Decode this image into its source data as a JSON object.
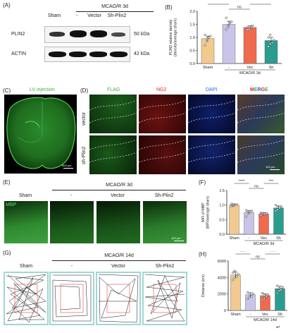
{
  "panelA": {
    "letter": "(A)",
    "group": "MCAO/R 3d",
    "lanes": [
      "Sham",
      "-",
      "Vector",
      "Sh-Plin2"
    ],
    "rows": [
      {
        "name": "PLIN2",
        "kda": "50 kDa"
      },
      {
        "name": "ACTIN",
        "kda": "42 kDa"
      }
    ]
  },
  "panelB": {
    "letter": "(B)",
    "ylabel": "PLIN2 relative density\n(density/average sham)",
    "group": "MCAO/R 3d",
    "colors": [
      "#f2c98e",
      "#c9c5e8",
      "#f06a4e",
      "#2a9d8f"
    ],
    "sig": [
      "****",
      "ns",
      "****"
    ]
  },
  "panelC": {
    "letter": "(C)",
    "title": "LV injection",
    "scale": "500 μm"
  },
  "panelD": {
    "letter": "(D)",
    "channels": [
      "FLAG",
      "NG2",
      "DAPI",
      "MERGE"
    ],
    "channel_colors": [
      "#3cb043",
      "#e02020",
      "#2060e0",
      "merge"
    ],
    "rows": [
      "vector",
      "sh-Plin2"
    ],
    "scale": "100 μm"
  },
  "panelE": {
    "letter": "(E)",
    "group": "MCAO/R 3d",
    "cols": [
      "Sham",
      "-",
      "Vector",
      "Sh-Plin2"
    ],
    "marker": "MBP",
    "scale": "100 μm"
  },
  "panelF": {
    "letter": "(F)",
    "ylabel": "MFI of MBP\n(MFI/average sham)",
    "group": "MCAO/R 3d",
    "sig": [
      "****",
      "ns",
      "***"
    ]
  },
  "panelG": {
    "letter": "(G)",
    "group": "MCAO/R 14d",
    "cols": [
      "Sham",
      "-",
      "Vector",
      "Sh-Plin2"
    ]
  },
  "panelH": {
    "letter": "(H)",
    "ylabel": "Distance (cm)",
    "group": "MCAO/R 14d",
    "sig": [
      "****",
      "ns",
      "****"
    ]
  },
  "end_mark": "↵",
  "chart_data": [
    {
      "type": "bar",
      "panel": "B",
      "categories": [
        "Sham",
        "-",
        "Vec",
        "Sh"
      ],
      "values": [
        0.95,
        1.5,
        1.38,
        0.88
      ],
      "errors": [
        0.1,
        0.12,
        0.07,
        0.12
      ],
      "points": [
        [
          0.7,
          0.85,
          1.0,
          1.05,
          1.1,
          0.95
        ],
        [
          1.3,
          1.45,
          1.55,
          1.6,
          1.75,
          1.4
        ],
        [
          1.3,
          1.35,
          1.4,
          1.45,
          1.4,
          1.3
        ],
        [
          0.65,
          0.75,
          0.8,
          0.9,
          1.0,
          1.1
        ]
      ],
      "ylim": [
        0,
        2.0
      ],
      "yticks": [
        0.0,
        0.5,
        1.0,
        1.5,
        2.0
      ],
      "ylabel": "PLIN2 relative density (density/average sham)",
      "xlabel": "MCAO/R 3d"
    },
    {
      "type": "bar",
      "panel": "F",
      "categories": [
        "Sham",
        "-",
        "Vec",
        "Sh"
      ],
      "values": [
        1.0,
        0.75,
        0.7,
        0.9
      ],
      "errors": [
        0.04,
        0.06,
        0.04,
        0.07
      ],
      "points": [
        [
          0.95,
          0.98,
          1.0,
          1.02,
          1.04,
          1.0
        ],
        [
          0.6,
          0.7,
          0.75,
          0.8,
          0.82,
          0.78
        ],
        [
          0.65,
          0.68,
          0.7,
          0.72,
          0.74,
          0.7
        ],
        [
          0.8,
          0.85,
          0.9,
          0.95,
          1.0,
          0.92
        ]
      ],
      "ylim": [
        0,
        1.5
      ],
      "yticks": [
        0.0,
        0.5,
        1.0,
        1.5
      ],
      "ylabel": "MFI of MBP (MFI/average sham)",
      "xlabel": "MCAO/R 3d"
    },
    {
      "type": "bar",
      "panel": "H",
      "categories": [
        "Sham",
        "-",
        "Vec",
        "Sh"
      ],
      "values": [
        4300,
        1900,
        1800,
        2650
      ],
      "errors": [
        350,
        250,
        200,
        300
      ],
      "points": [
        [
          3700,
          4000,
          4200,
          4400,
          4600,
          4800,
          4100
        ],
        [
          1400,
          1600,
          1800,
          2000,
          2200,
          1900,
          1700
        ],
        [
          1300,
          1500,
          1700,
          1900,
          2100,
          1800,
          1900
        ],
        [
          2100,
          2400,
          2600,
          2800,
          3000,
          2700,
          2500
        ]
      ],
      "ylim": [
        0,
        6000
      ],
      "yticks": [
        0,
        2000,
        4000,
        6000
      ],
      "ylabel": "Distance (cm)",
      "xlabel": "MCAO/R 14d"
    }
  ]
}
